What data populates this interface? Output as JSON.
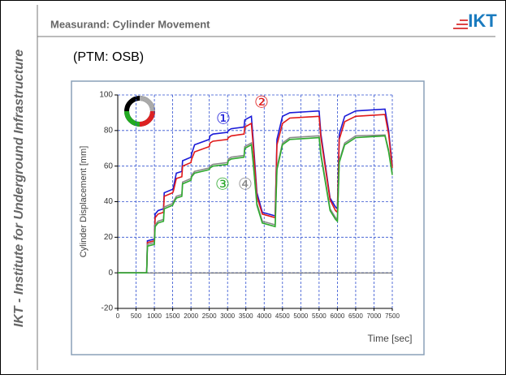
{
  "sidebar": "IKT - Institute for Underground Infrastructure",
  "header": "Measurand: Cylinder Movement",
  "logo": "IKT",
  "subtitle": "(PTM: OSB)",
  "chart_data": {
    "type": "line",
    "x": [
      0,
      790,
      810,
      1000,
      1020,
      1100,
      1250,
      1270,
      1500,
      1520,
      1600,
      1750,
      1770,
      2000,
      2020,
      2100,
      2500,
      2520,
      2600,
      3000,
      3020,
      3100,
      3450,
      3470,
      3650,
      3700,
      3800,
      3950,
      4300,
      4350,
      4500,
      4700,
      5500,
      5550,
      5800,
      5950,
      6000,
      6050,
      6200,
      6500,
      7300,
      7400,
      7500
    ],
    "series": [
      {
        "name": "①",
        "color": "#1a1ad8",
        "values": [
          0,
          0,
          18,
          19,
          33,
          35,
          36,
          45,
          47,
          48,
          56,
          57,
          63,
          65,
          67,
          72,
          75,
          77,
          78,
          79,
          80,
          81,
          82,
          86,
          88,
          75,
          45,
          34,
          32,
          75,
          88,
          90,
          91,
          78,
          42,
          37,
          36,
          78,
          88,
          91,
          92,
          80,
          60
        ]
      },
      {
        "name": "②",
        "color": "#e01818",
        "values": [
          0,
          0,
          17,
          18,
          31,
          33,
          34,
          43,
          45,
          46,
          53,
          54,
          60,
          62,
          64,
          68,
          71,
          73,
          74,
          75,
          76,
          77,
          78,
          82,
          84,
          72,
          43,
          33,
          31,
          72,
          84,
          87,
          88,
          76,
          41,
          35,
          34,
          75,
          85,
          88,
          89,
          78,
          59
        ]
      },
      {
        "name": "④",
        "color": "#8a8a8a",
        "values": [
          0,
          0,
          16,
          17,
          27,
          29,
          30,
          37,
          39,
          40,
          43,
          44,
          51,
          53,
          55,
          57,
          59,
          60,
          61,
          62,
          64,
          65,
          66,
          71,
          73,
          63,
          39,
          29,
          27,
          59,
          73,
          76,
          77,
          67,
          36,
          31,
          30,
          63,
          73,
          77,
          77.5,
          69,
          56
        ]
      },
      {
        "name": "③",
        "color": "#2faa2f",
        "values": [
          0,
          0,
          15,
          16,
          26,
          28,
          29,
          36,
          38,
          39,
          42,
          43,
          50,
          52,
          54,
          56,
          58,
          59,
          60,
          61,
          63,
          64,
          65,
          70,
          72,
          62,
          38,
          28,
          26,
          58,
          72,
          75,
          76,
          66,
          35,
          30,
          29,
          62,
          72,
          76,
          77,
          68,
          55
        ]
      }
    ],
    "xlabel": "Time [sec]",
    "ylabel": "Cylinder Displacement [mm]",
    "xlim": [
      0,
      7500
    ],
    "xticks": [
      0,
      500,
      1000,
      1500,
      2000,
      2500,
      3000,
      3500,
      4000,
      4500,
      5000,
      5500,
      6000,
      6500,
      7000,
      7500
    ],
    "ylim": [
      -20,
      100
    ],
    "yticks": [
      -20,
      0,
      20,
      40,
      60,
      80,
      100
    ],
    "grid": true
  }
}
